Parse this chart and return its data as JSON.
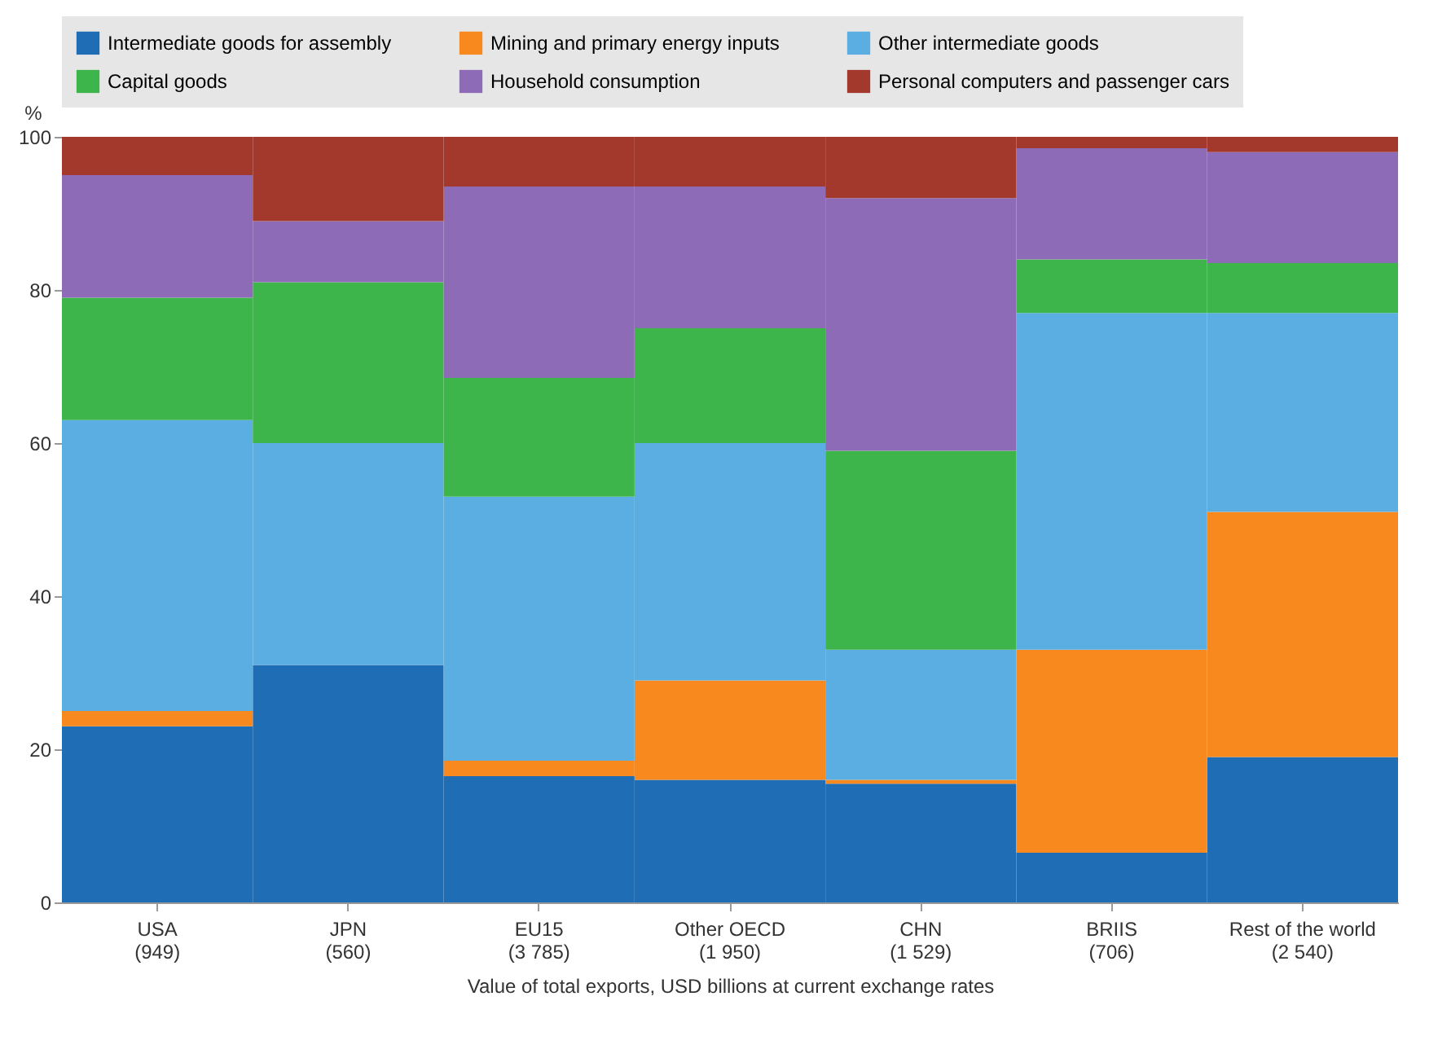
{
  "chart_data": {
    "type": "bar",
    "stacked": true,
    "ylabel": "%",
    "xlabel": "Value of total exports, USD billions at current exchange rates",
    "categories": [
      "USA\n(949)",
      "JPN\n(560)",
      "EU15\n(3 785)",
      "Other OECD\n(1 950)",
      "CHN\n(1 529)",
      "BRIIS\n(706)",
      "Rest of the world\n(2 540)"
    ],
    "series": [
      {
        "name": "Intermediate goods for assembly",
        "color": "#1f6db5",
        "values": [
          23,
          31,
          16.5,
          16,
          15.5,
          6.5,
          19
        ]
      },
      {
        "name": "Mining and primary energy inputs",
        "color": "#f7891f",
        "values": [
          2,
          0,
          2,
          13,
          0.5,
          26.5,
          32
        ]
      },
      {
        "name": "Other intermediate goods",
        "color": "#5aaee2",
        "values": [
          38,
          29,
          34.5,
          31,
          17,
          44,
          26
        ]
      },
      {
        "name": "Capital goods",
        "color": "#3eb54b",
        "values": [
          16,
          21,
          15.5,
          15,
          26,
          7,
          6.5
        ]
      },
      {
        "name": "Household consumption",
        "color": "#8e6bb6",
        "values": [
          16,
          8,
          25,
          18.5,
          33,
          14.5,
          14.5
        ]
      },
      {
        "name": "Personal computers and passenger cars",
        "color": "#a3392c",
        "values": [
          5,
          11,
          6.5,
          6.5,
          8,
          1.5,
          2
        ]
      }
    ],
    "ylim": [
      0,
      100
    ],
    "yticks": [
      0,
      20,
      40,
      60,
      80,
      100
    ],
    "grid": false,
    "legend": "top"
  }
}
